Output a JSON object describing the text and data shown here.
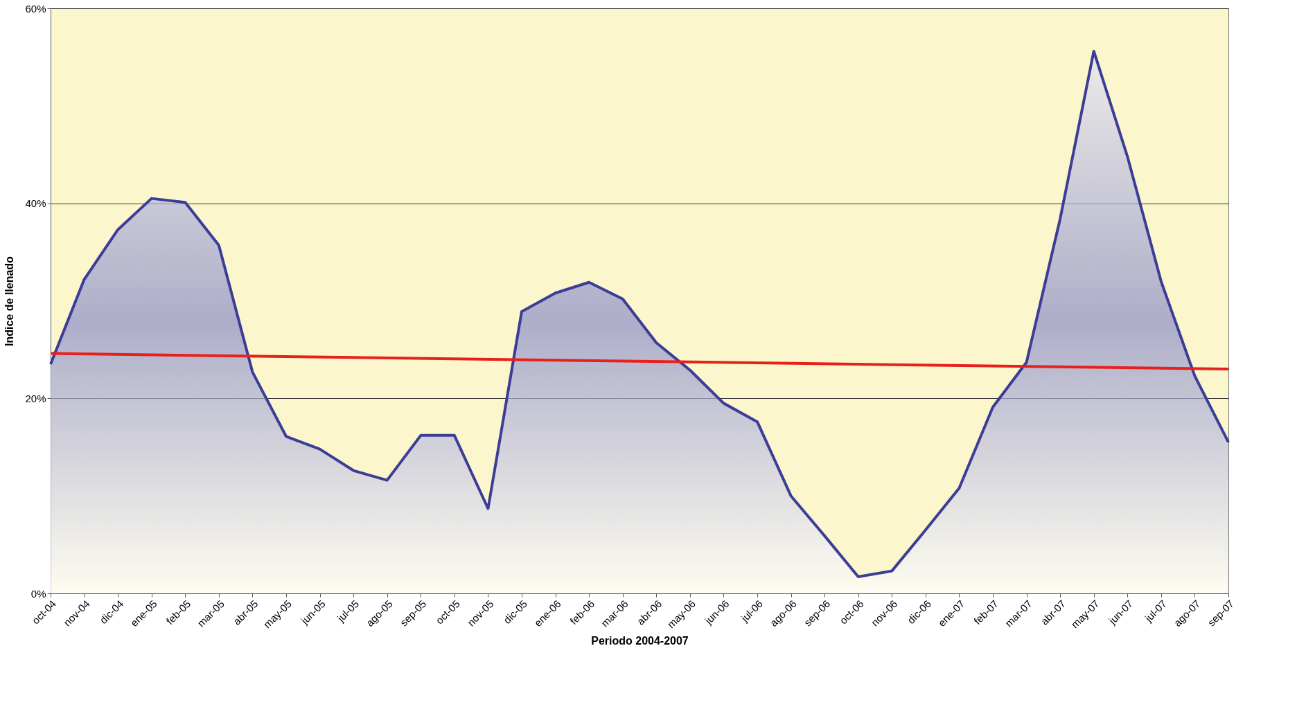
{
  "chart_data": {
    "type": "area",
    "xlabel": "Periodo 2004-2007",
    "ylabel": "Indice de llenado",
    "categories": [
      "oct-04",
      "nov-04",
      "dic-04",
      "ene-05",
      "feb-05",
      "mar-05",
      "abr-05",
      "may-05",
      "jun-05",
      "jul-05",
      "ago-05",
      "sep-05",
      "oct-05",
      "nov-05",
      "dic-05",
      "ene-06",
      "feb-06",
      "mar-06",
      "abr-06",
      "may-06",
      "jun-06",
      "jul-06",
      "ago-06",
      "sep-06",
      "oct-06",
      "nov-06",
      "dic-06",
      "ene-07",
      "feb-07",
      "mar-07",
      "abr-07",
      "may-07",
      "jun-07",
      "jul-07",
      "ago-07",
      "sep-07"
    ],
    "series": [
      {
        "color": "#3b3d96",
        "values": [
          23.5,
          32.2,
          37.3,
          40.5,
          40.1,
          35.7,
          22.7,
          16.1,
          14.8,
          12.6,
          11.6,
          16.2,
          16.2,
          8.7,
          28.9,
          30.8,
          31.9,
          30.2,
          25.7,
          22.9,
          19.5,
          17.6,
          10.0,
          5.9,
          1.7,
          2.3,
          6.5,
          10.8,
          19.1,
          23.7,
          38.4,
          55.6,
          44.8,
          32.0,
          22.3,
          15.5
        ]
      },
      {
        "type": "line",
        "color": "#e8201c",
        "x": [
          "oct-04",
          "sep-07"
        ],
        "values": [
          24.6,
          23.0
        ]
      }
    ],
    "ylim": [
      0,
      60
    ],
    "yticks": [
      {
        "value": 0,
        "label": "0%"
      },
      {
        "value": 20,
        "label": "20%"
      },
      {
        "value": 40,
        "label": "40%"
      },
      {
        "value": 60,
        "label": "60%"
      }
    ],
    "grid": "y"
  }
}
